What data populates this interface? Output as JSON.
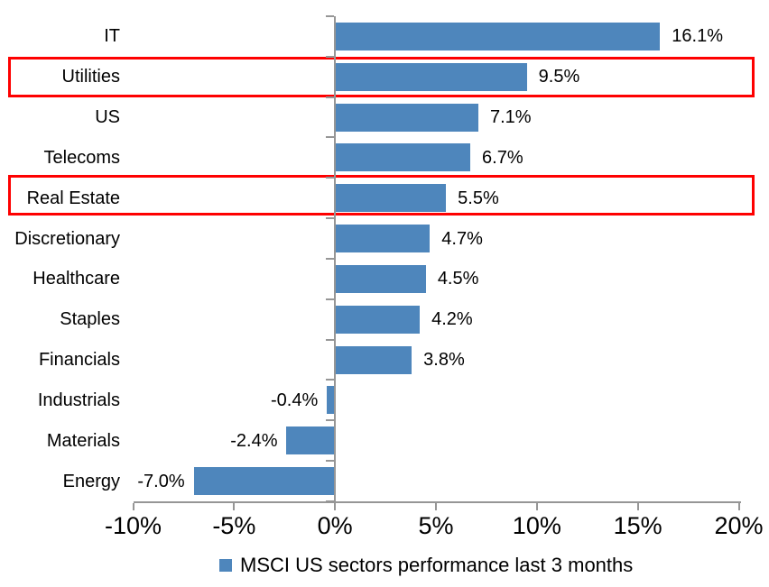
{
  "chart_data": {
    "type": "bar",
    "orientation": "horizontal",
    "title": "",
    "categories": [
      "IT",
      "Utilities",
      "US",
      "Telecoms",
      "Real Estate",
      "Discretionary",
      "Healthcare",
      "Staples",
      "Financials",
      "Industrials",
      "Materials",
      "Energy"
    ],
    "values": [
      16.1,
      9.5,
      7.1,
      6.7,
      5.5,
      4.7,
      4.5,
      4.2,
      3.8,
      -0.4,
      -2.4,
      -7.0
    ],
    "value_labels": [
      "16.1%",
      "9.5%",
      "7.1%",
      "6.7%",
      "5.5%",
      "4.7%",
      "4.5%",
      "4.2%",
      "3.8%",
      "-0.4%",
      "-2.4%",
      "-7.0%"
    ],
    "xlim": [
      -10,
      20
    ],
    "x_tick_values": [
      -10,
      -5,
      0,
      5,
      10,
      15,
      20
    ],
    "x_tick_labels": [
      "-10%",
      "-5%",
      "0%",
      "5%",
      "10%",
      "15%",
      "20%"
    ],
    "grid": false,
    "legend_position": "bottom",
    "legend": [
      {
        "label": "MSCI US sectors performance last 3 months",
        "color": "#4E86BC"
      }
    ],
    "bar_color": "#4E86BC",
    "axis_color": "#969696",
    "text_color": "#000000",
    "highlight_box_color": "#FE0000",
    "highlighted_categories": [
      "Utilities",
      "Real Estate"
    ]
  }
}
